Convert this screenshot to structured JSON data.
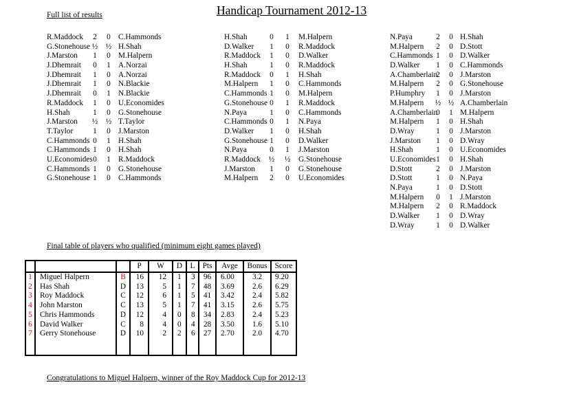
{
  "page": {
    "title": "Handicap Tournament 2012-13",
    "results_heading": "Full list of results",
    "table_heading": "Final table of players who qualified (minimum eight games played)",
    "footer": "Congratulations to Miguel Halpern, winner of the Roy Maddock Cup for 2012-13"
  },
  "colors": {
    "accent_red": "#e00000",
    "text": "#000000",
    "background": "#ffffff"
  },
  "results": {
    "col1": [
      [
        "R.Maddock",
        "2",
        "0",
        "C.Hammonds"
      ],
      [
        "G.Stonehouse",
        "½",
        "½",
        "H.Shah"
      ],
      [
        "J.Marston",
        "1",
        "0",
        "M.Halpern"
      ],
      [
        "J.Dhemrait",
        "0",
        "1",
        "A.Norzai"
      ],
      [
        "J.Dhemrait",
        "1",
        "0",
        "A.Norzai"
      ],
      [
        "J.Dhemrait",
        "1",
        "0",
        "N.Blackie"
      ],
      [
        "J.Dhemrait",
        "0",
        "1",
        "N.Blackie"
      ],
      [
        "R.Maddock",
        "1",
        "0",
        "U.Economides"
      ],
      [
        "H.Shah",
        "1",
        "0",
        "G.Stonehouse"
      ],
      [
        "J.Marston",
        "½",
        "½",
        "T.Taylor"
      ],
      [
        "T.Taylor",
        "1",
        "0",
        "J.Marston"
      ],
      [
        "C.Hammonds",
        "0",
        "1",
        "H.Shah"
      ],
      [
        "C.Hammonds",
        "1",
        "0",
        "H.Shah"
      ],
      [
        "U.Economides",
        "0",
        "1",
        "R.Maddock"
      ],
      [
        "C.Hammonds",
        "1",
        "0",
        "G.Stonehouse"
      ],
      [
        "G.Stonehouse",
        "1",
        "0",
        "C.Hammonds"
      ]
    ],
    "col2": [
      [
        "H.Shah",
        "0",
        "1",
        "M.Halpern"
      ],
      [
        "D.Walker",
        "1",
        "0",
        "R.Maddock"
      ],
      [
        "R.Maddock",
        "1",
        "0",
        "D.Walker"
      ],
      [
        "H.Shah",
        "1",
        "0",
        "R.Maddock"
      ],
      [
        "R.Maddock",
        "0",
        "1",
        "H.Shah"
      ],
      [
        "M.Halpern",
        "1",
        "0",
        "C.Hammonds"
      ],
      [
        "C.Hammonds",
        "1",
        "0",
        "M.Halpern"
      ],
      [
        "G.Stonehouse",
        "0",
        "1",
        "R.Maddock"
      ],
      [
        "N.Paya",
        "1",
        "0",
        "C.Hammonds"
      ],
      [
        "C.Hammonds",
        "0",
        "1",
        "N.Paya"
      ],
      [
        "D.Walker",
        "1",
        "0",
        "H.Shah"
      ],
      [
        "G.Stonehouse",
        "1",
        "0",
        "D.Walker"
      ],
      [
        "N.Paya",
        "0",
        "1",
        "J.Marston"
      ],
      [
        "R.Maddock",
        "½",
        "½",
        "G.Stonehouse"
      ],
      [
        "J.Marston",
        "1",
        "0",
        "G.Stonehouse"
      ],
      [
        "M.Halpern",
        "2",
        "0",
        "U.Economides"
      ]
    ],
    "col3": [
      [
        "N.Paya",
        "2",
        "0",
        "H.Shah"
      ],
      [
        "M.Halpern",
        "2",
        "0",
        "D.Stott"
      ],
      [
        "C.Hammonds",
        "1",
        "0",
        "D.Walker"
      ],
      [
        "D.Walker",
        "1",
        "0",
        "C.Hammonds"
      ],
      [
        "A.Chamberlain",
        "2",
        "0",
        "J.Marston"
      ],
      [
        "M.Halpern",
        "2",
        "0",
        "G.Stonehouse"
      ],
      [
        "P.Humphry",
        "1",
        "0",
        "J.Marston"
      ],
      [
        "M.Halpern",
        "½",
        "½",
        "A.Chamberlain"
      ],
      [
        "A.Chamberlain",
        "0",
        "1",
        "M.Halpern"
      ],
      [
        "M.Halpern",
        "1",
        "0",
        "H.Shah"
      ],
      [
        "D.Wray",
        "1",
        "0",
        "J.Marston"
      ],
      [
        "J.Marston",
        "1",
        "0",
        "D.Wray"
      ],
      [
        "H.Shah",
        "1",
        "0",
        "U.Economides"
      ],
      [
        "U.Economides",
        "1",
        "0",
        "H.Shah"
      ],
      [
        "D.Stott",
        "2",
        "0",
        "J.Marston"
      ],
      [
        "D.Stott",
        "1",
        "0",
        "N.Paya"
      ],
      [
        "N.Paya",
        "1",
        "0",
        "D.Stott"
      ],
      [
        "M.Halpern",
        "0",
        "1",
        "J.Marston"
      ],
      [
        "M.Halpern",
        "2",
        "0",
        "R.Maddock"
      ],
      [
        "D.Walker",
        "1",
        "0",
        "D.Wray"
      ],
      [
        "D.Wray",
        "1",
        "0",
        "D.Walker"
      ]
    ]
  },
  "final_table": {
    "columns": [
      "",
      "",
      "",
      "P",
      "W",
      "D",
      "L",
      "Pts",
      "Avge",
      "Bonus",
      "Score"
    ],
    "rows": [
      {
        "rank": "1",
        "name": "Miguel Halpern",
        "division": "B",
        "division_red": true,
        "p": "16",
        "w": "12",
        "d": "1",
        "l": "3",
        "pts": "96",
        "avge": "6.00",
        "bonus": "3.2",
        "score": "9.20"
      },
      {
        "rank": "2",
        "name": "Has Shah",
        "division": "D",
        "division_red": false,
        "p": "13",
        "w": "5",
        "d": "1",
        "l": "7",
        "pts": "48",
        "avge": "3.69",
        "bonus": "2.6",
        "score": "6.29"
      },
      {
        "rank": "3",
        "name": "Roy Maddock",
        "division": "C",
        "division_red": false,
        "p": "12",
        "w": "6",
        "d": "1",
        "l": "5",
        "pts": "41",
        "avge": "3.42",
        "bonus": "2.4",
        "score": "5.82"
      },
      {
        "rank": "4",
        "name": "John Marston",
        "division": "C",
        "division_red": false,
        "p": "13",
        "w": "5",
        "d": "1",
        "l": "7",
        "pts": "41",
        "avge": "3.15",
        "bonus": "2.6",
        "score": "5.75"
      },
      {
        "rank": "5",
        "name": "Chris Hammonds",
        "division": "D",
        "division_red": false,
        "p": "12",
        "w": "4",
        "d": "0",
        "l": "8",
        "pts": "34",
        "avge": "2.83",
        "bonus": "2.4",
        "score": "5.23"
      },
      {
        "rank": "6",
        "name": "David Walker",
        "division": "C",
        "division_red": false,
        "p": "8",
        "w": "4",
        "d": "0",
        "l": "4",
        "pts": "28",
        "avge": "3.50",
        "bonus": "1.6",
        "score": "5.10"
      },
      {
        "rank": "7",
        "name": "Gerry Stonehouse",
        "division": "D",
        "division_red": false,
        "p": "10",
        "w": "2",
        "d": "2",
        "l": "6",
        "pts": "27",
        "avge": "2.70",
        "bonus": "2.0",
        "score": "4.70"
      }
    ]
  }
}
